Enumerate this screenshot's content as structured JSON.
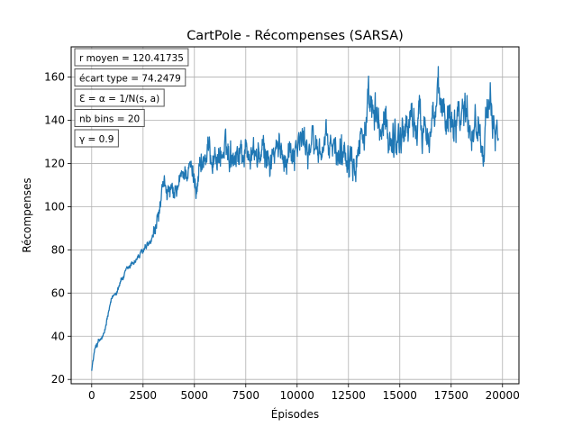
{
  "chart_data": {
    "type": "line",
    "title": "CartPole - Récompenses (SARSA)",
    "xlabel": "Épisodes",
    "ylabel": "Récompenses",
    "xlim": [
      -1000,
      20800
    ],
    "ylim": [
      18,
      174
    ],
    "xticks": [
      0,
      2500,
      5000,
      7500,
      10000,
      12500,
      15000,
      17500,
      20000
    ],
    "yticks": [
      20,
      40,
      60,
      80,
      100,
      120,
      140,
      160
    ],
    "grid": true,
    "line_color": "#1f77b4",
    "annotations": [
      "r moyen = 120.41735",
      "écart type = 74.2479",
      "Ɛ = α = 1/N(s, a)",
      "nb bins = 20",
      "γ = 0.9"
    ],
    "series": [
      {
        "name": "Récompenses",
        "x": [
          0,
          200,
          400,
          600,
          800,
          1000,
          1200,
          1400,
          1600,
          1800,
          2000,
          2200,
          2500,
          2800,
          3000,
          3200,
          3400,
          3600,
          3800,
          4000,
          4200,
          4500,
          4800,
          5000,
          5300,
          5600,
          6000,
          6500,
          7000,
          7500,
          8000,
          8500,
          9000,
          9500,
          10000,
          10500,
          11000,
          11500,
          12000,
          12500,
          13000,
          13500,
          14000,
          14500,
          15000,
          15500,
          16000,
          16500,
          17000,
          17500,
          18000,
          18500,
          19000,
          19500,
          19800
        ],
        "y": [
          25,
          36,
          38,
          40,
          50,
          57,
          61,
          66,
          68,
          71,
          74,
          76,
          79,
          82,
          85,
          93,
          103,
          110,
          106,
          103,
          108,
          116,
          118,
          113,
          120,
          124,
          124,
          124,
          127,
          126,
          124,
          122,
          124,
          126,
          130,
          129,
          127,
          128,
          124,
          131,
          132,
          141,
          136,
          134,
          133,
          141,
          138,
          143,
          144,
          145,
          148,
          140,
          137,
          139,
          138
        ]
      }
    ]
  }
}
